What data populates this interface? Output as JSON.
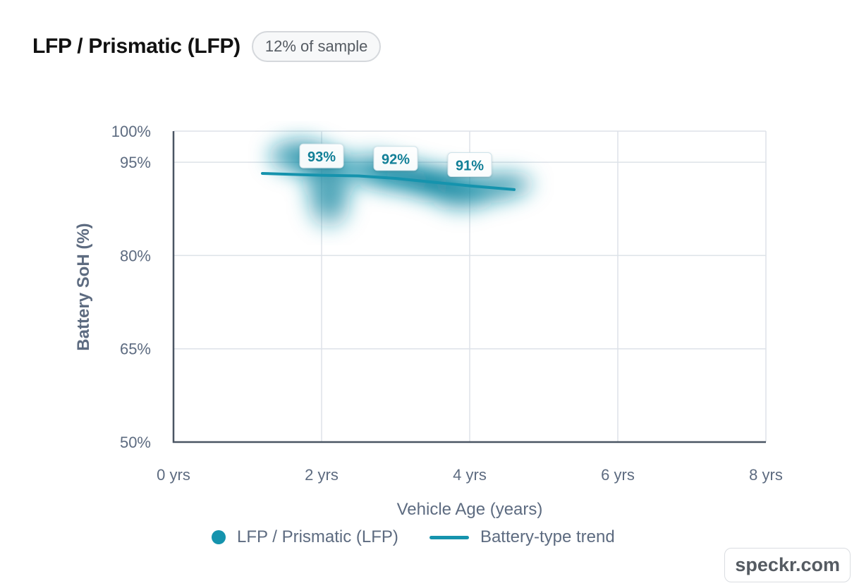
{
  "header": {
    "title": "LFP / Prismatic (LFP)",
    "badge": "12% of sample"
  },
  "legend": {
    "series_label": "LFP / Prismatic (LFP)",
    "trend_label": "Battery-type trend"
  },
  "watermark": "speckr.com",
  "colors": {
    "accent": "#1593ad",
    "axis": "#4a5563",
    "grid": "#dde2e8",
    "text": "#5d6b80"
  },
  "chart_data": {
    "type": "scatter",
    "xlabel": "Vehicle Age (years)",
    "ylabel": "Battery SoH (%)",
    "xlim": [
      0,
      8
    ],
    "ylim": [
      50,
      100
    ],
    "x_ticks": [
      0,
      2,
      4,
      6,
      8
    ],
    "x_tick_labels": [
      "0 yrs",
      "2 yrs",
      "4 yrs",
      "6 yrs",
      "8 yrs"
    ],
    "y_ticks": [
      50,
      65,
      80,
      95,
      100
    ],
    "y_tick_labels": [
      "50%",
      "65%",
      "80%",
      "95%",
      "100%"
    ],
    "grid": true,
    "legend_position": "bottom",
    "series": [
      {
        "name": "LFP / Prismatic (LFP)",
        "kind": "density",
        "clusters": [
          {
            "x": 1.7,
            "y": 96,
            "sx": 0.3,
            "sy": 2.0,
            "w": 0.6
          },
          {
            "x": 2.0,
            "y": 95,
            "sx": 0.3,
            "sy": 1.5,
            "w": 0.7
          },
          {
            "x": 2.1,
            "y": 92,
            "sx": 0.25,
            "sy": 3.0,
            "w": 0.5
          },
          {
            "x": 2.1,
            "y": 88,
            "sx": 0.2,
            "sy": 2.5,
            "w": 0.45
          },
          {
            "x": 2.7,
            "y": 94,
            "sx": 0.3,
            "sy": 1.8,
            "w": 0.55
          },
          {
            "x": 3.0,
            "y": 93,
            "sx": 0.35,
            "sy": 1.8,
            "w": 0.65
          },
          {
            "x": 3.3,
            "y": 92.3,
            "sx": 0.35,
            "sy": 1.5,
            "w": 0.85
          },
          {
            "x": 3.6,
            "y": 91.5,
            "sx": 0.35,
            "sy": 1.8,
            "w": 0.7
          },
          {
            "x": 3.9,
            "y": 90,
            "sx": 0.3,
            "sy": 2.0,
            "w": 0.55
          },
          {
            "x": 4.3,
            "y": 91,
            "sx": 0.3,
            "sy": 1.8,
            "w": 0.5
          },
          {
            "x": 4.6,
            "y": 91.5,
            "sx": 0.2,
            "sy": 1.5,
            "w": 0.35
          }
        ]
      },
      {
        "name": "Battery-type trend",
        "kind": "line",
        "x": [
          1.2,
          2.0,
          2.5,
          3.0,
          3.5,
          4.0,
          4.6
        ],
        "y": [
          93.2,
          92.9,
          92.8,
          92.4,
          91.8,
          91.2,
          90.6
        ]
      }
    ],
    "annotations": [
      {
        "x": 2.0,
        "y": 95.9,
        "label": "93%"
      },
      {
        "x": 3.0,
        "y": 95.5,
        "label": "92%"
      },
      {
        "x": 4.0,
        "y": 94.5,
        "label": "91%"
      }
    ]
  }
}
